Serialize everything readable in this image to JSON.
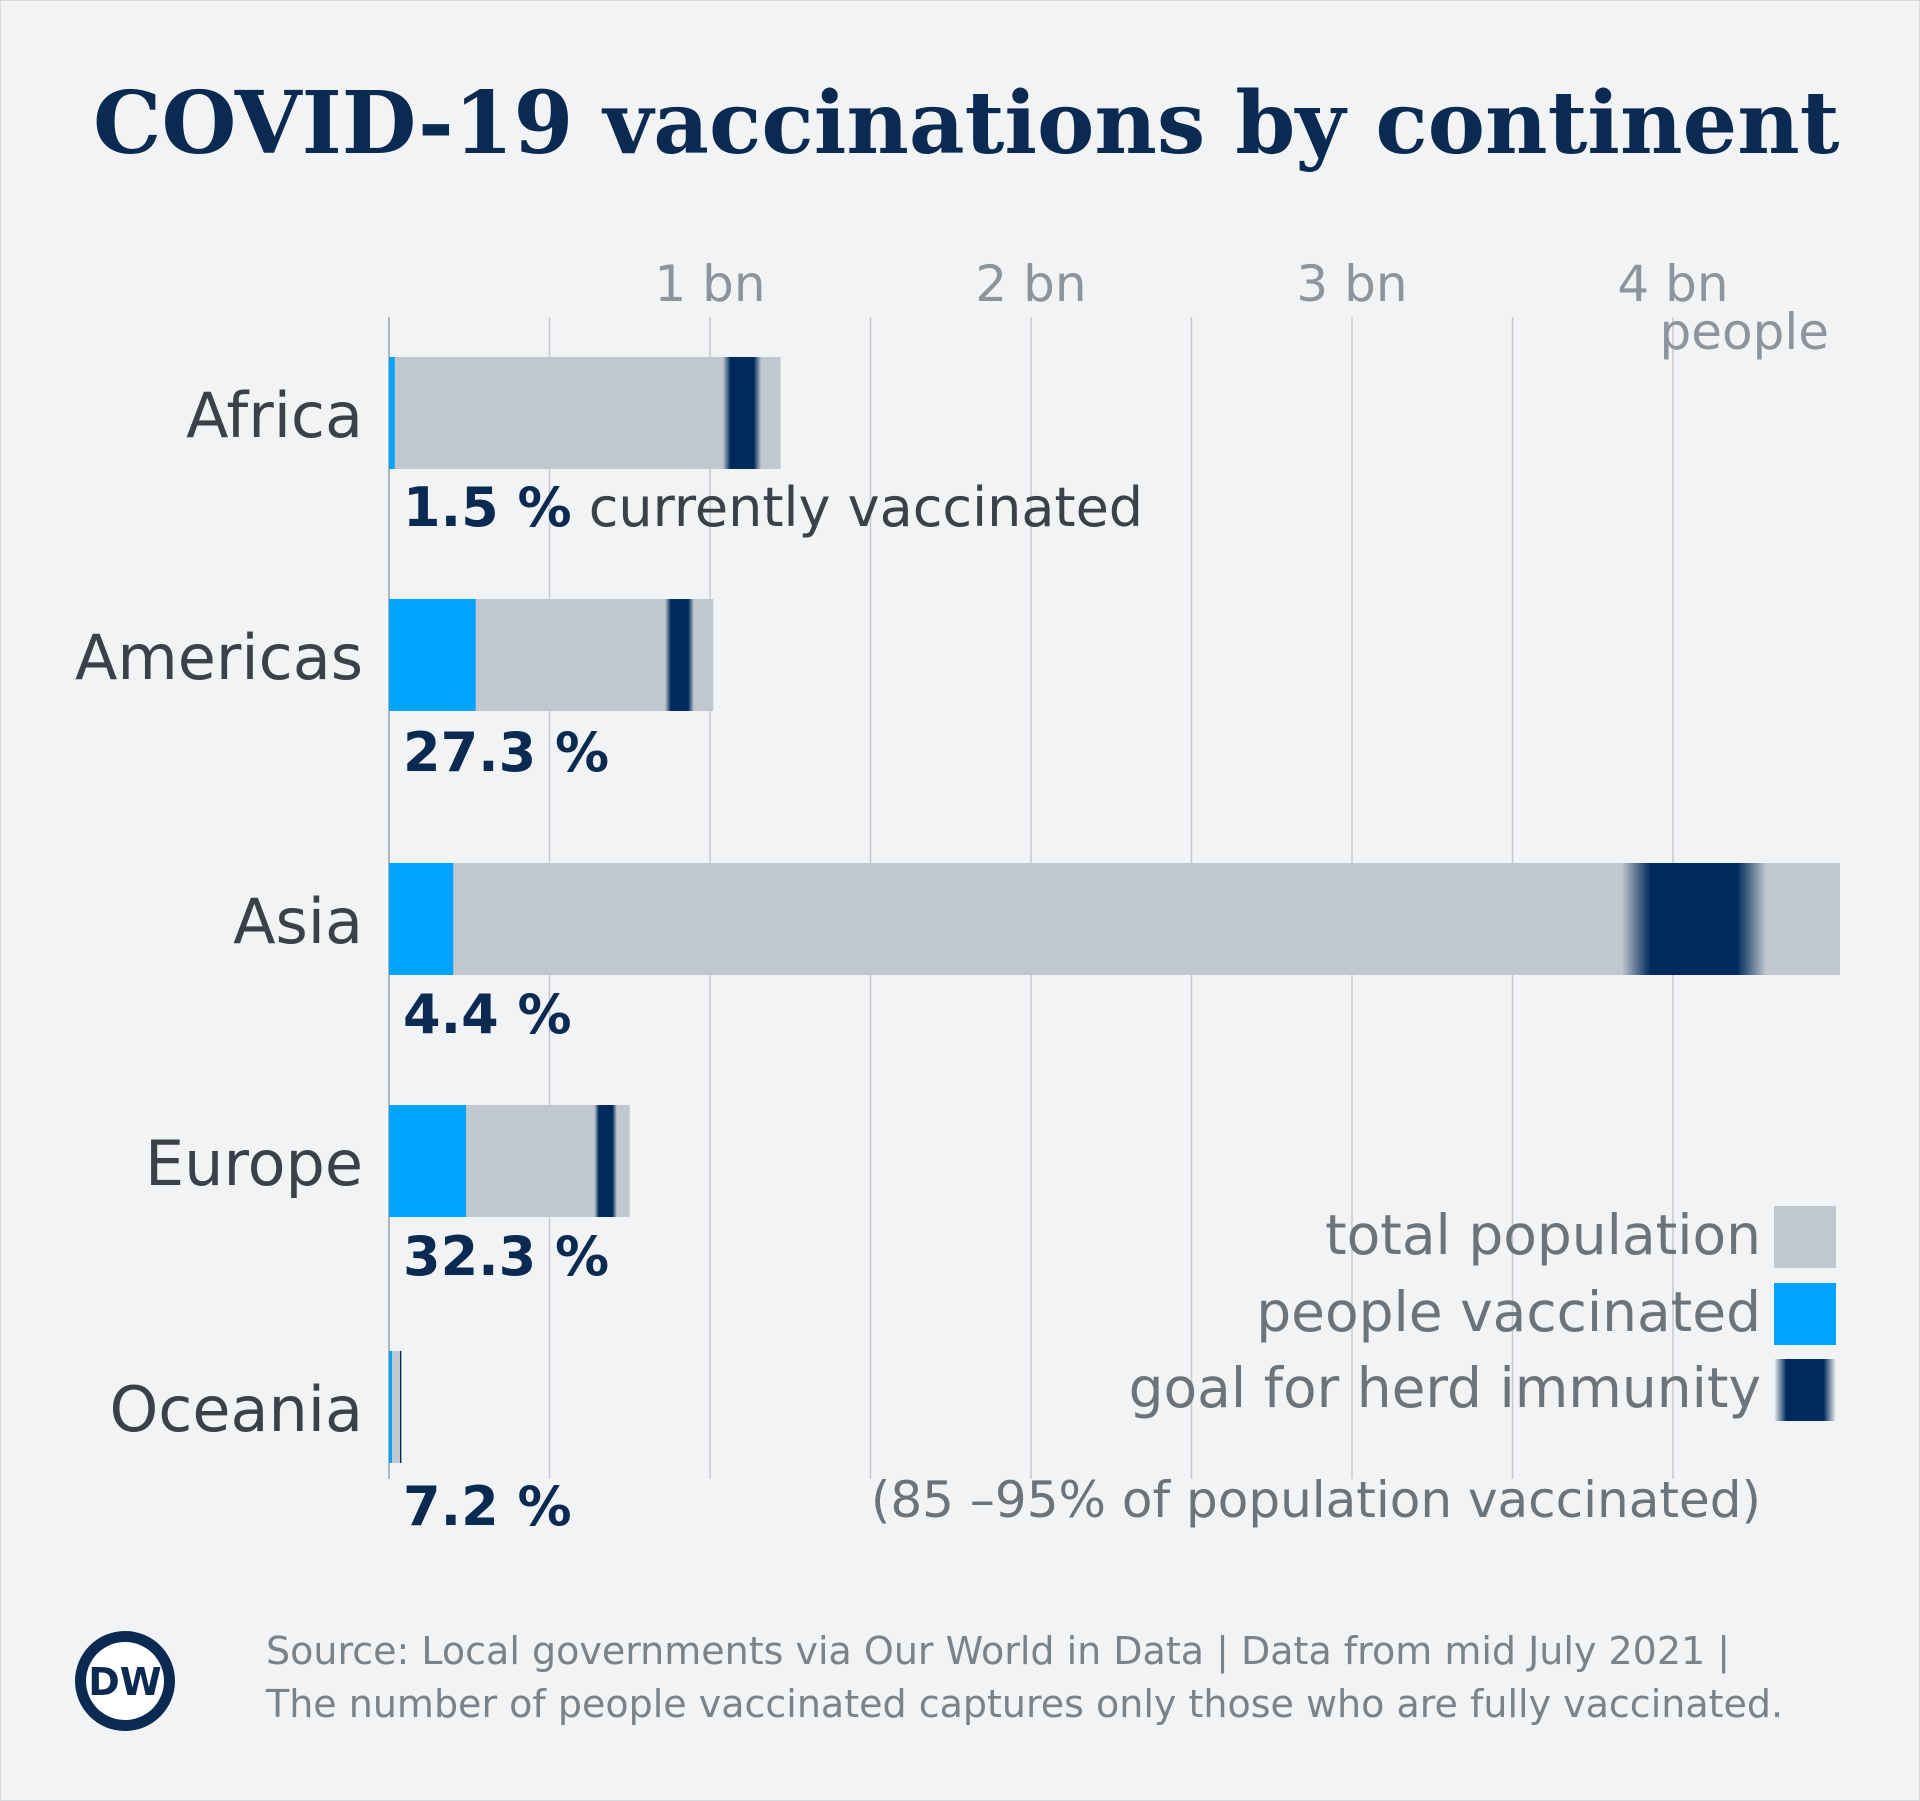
{
  "title": "COVID-19 vaccinations by continent",
  "colors": {
    "title": "#0b2a52",
    "population": "#c0c7ce",
    "vaccinated": "#00a4ff",
    "goal": "#002a5c",
    "grid": "#c4c9ce",
    "background": "#f2f3f5"
  },
  "chart_data": {
    "type": "bar",
    "orientation": "horizontal",
    "stacked": true,
    "xunit_label": "people",
    "xlim": [
      0,
      4.52
    ],
    "xticks": [
      {
        "value": 1,
        "label": "1 bn"
      },
      {
        "value": 2,
        "label": "2 bn"
      },
      {
        "value": 3,
        "label": "3 bn"
      },
      {
        "value": 4,
        "label": "4 bn"
      }
    ],
    "gridlines": [
      0.5,
      1,
      1.5,
      2,
      2.5,
      3,
      3.5,
      4
    ],
    "categories": [
      "Africa",
      "Americas",
      "Asia",
      "Europe",
      "Oceania"
    ],
    "series": [
      {
        "name": "total population",
        "values_bn": [
          1.22,
          1.01,
          4.52,
          0.75,
          0.04
        ]
      },
      {
        "name": "people vaccinated",
        "values_bn": [
          0.018,
          0.27,
          0.2,
          0.24,
          0.003
        ]
      },
      {
        "name": "goal for herd immunity (85–95% of population vaccinated)",
        "ranges_bn": [
          [
            1.04,
            1.16
          ],
          [
            0.86,
            0.95
          ],
          [
            3.84,
            4.29
          ],
          [
            0.64,
            0.71
          ],
          [
            0.034,
            0.038
          ]
        ]
      }
    ],
    "labels": [
      {
        "pct": "1.5 %",
        "note": " currently vaccinated"
      },
      {
        "pct": "27.3 %",
        "note": ""
      },
      {
        "pct": "4.4 %",
        "note": ""
      },
      {
        "pct": "32.3 %",
        "note": ""
      },
      {
        "pct": "7.2 %",
        "note": ""
      }
    ],
    "legend": [
      {
        "key": "population",
        "label": "total population"
      },
      {
        "key": "vaccinated",
        "label": "people vaccinated"
      },
      {
        "key": "goal",
        "label": "goal for herd immunity"
      }
    ],
    "legend_note": "(85 –95% of population vaccinated)"
  },
  "source": {
    "line1": "Source: Local governments via Our World in Data | Data from mid July 2021 |",
    "line2": "The number of people vaccinated captures only those who are fully vaccinated."
  },
  "logo": "DW"
}
